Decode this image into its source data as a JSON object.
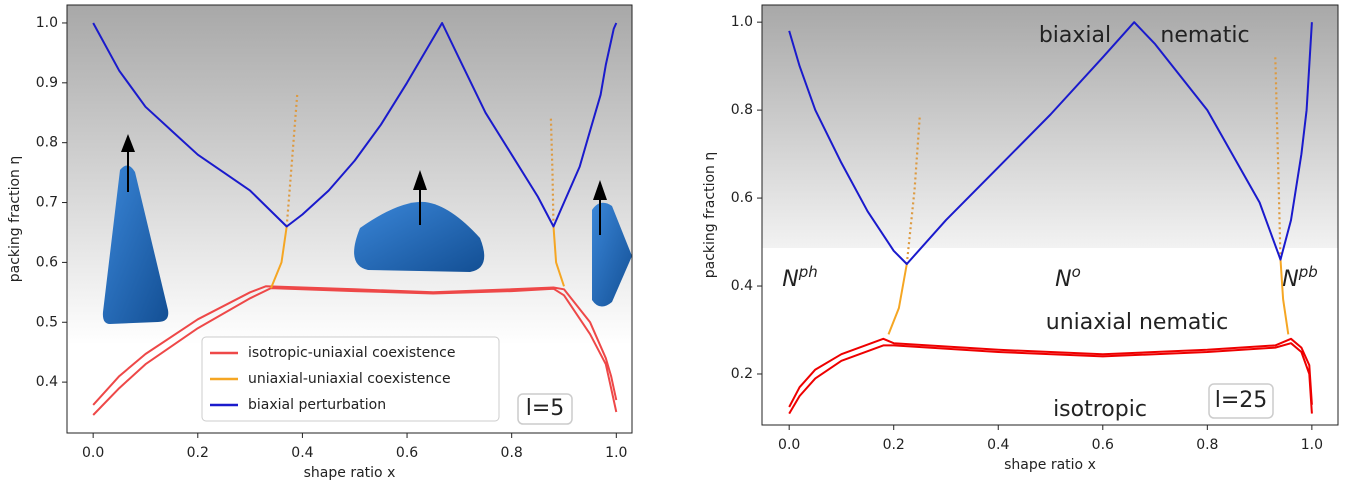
{
  "chart_data": [
    {
      "type": "line",
      "xlabel": "shape ratio x",
      "ylabel": "packing fraction η",
      "xlim": [
        -0.05,
        1.03
      ],
      "ylim": [
        0.315,
        1.03
      ],
      "xticks": [
        {
          "value": 0,
          "label": "0.0"
        },
        0.2,
        0.4,
        0.6,
        0.8,
        {
          "value": 1,
          "label": "1.0"
        }
      ],
      "yticks": [
        0.4,
        0.5,
        0.6,
        0.7,
        0.8,
        0.9,
        {
          "value": 1,
          "label": "1.0"
        }
      ],
      "legend": "lower center",
      "annotations": [
        {
          "text": "l=5"
        }
      ],
      "series": [
        {
          "name": "isotropic-uniaxial coexistence",
          "color": "#ee4848",
          "x": [
            0,
            0.05,
            0.1,
            0.2,
            0.3,
            0.34,
            0.5,
            0.65,
            0.8,
            0.88,
            0.9,
            0.95,
            0.98,
            0.99,
            1.0,
            null,
            0,
            0.05,
            0.1,
            0.2,
            0.3,
            0.33,
            0.5,
            0.65,
            0.8,
            0.88,
            0.9,
            0.95,
            0.98,
            0.99,
            1.0
          ],
          "values": [
            0.345,
            0.39,
            0.43,
            0.49,
            0.54,
            0.557,
            0.552,
            0.548,
            0.552,
            0.556,
            0.545,
            0.48,
            0.43,
            0.39,
            0.35,
            null,
            0.362,
            0.41,
            0.447,
            0.505,
            0.55,
            0.56,
            0.555,
            0.55,
            0.555,
            0.558,
            0.555,
            0.5,
            0.44,
            0.41,
            0.37
          ]
        },
        {
          "name": "uniaxial-uniaxial coexistence",
          "color": "#f5a623",
          "x": [
            0.34,
            0.36,
            0.37,
            null,
            0.88,
            0.885,
            0.9
          ],
          "values": [
            0.557,
            0.6,
            0.66,
            null,
            0.66,
            0.6,
            0.56
          ]
        },
        {
          "color": "#dd9a40",
          "style": "dotted",
          "x": [
            0.37,
            0.38,
            0.39,
            null,
            0.875,
            0.878,
            0.88
          ],
          "values": [
            0.66,
            0.77,
            0.88,
            null,
            0.84,
            0.75,
            0.66
          ]
        },
        {
          "name": "biaxial perturbation",
          "color": "#1a1acc",
          "x": [
            0,
            0.05,
            0.1,
            0.15,
            0.2,
            0.25,
            0.3,
            0.37,
            0.4,
            0.45,
            0.5,
            0.55,
            0.6,
            0.667,
            0.7,
            0.75,
            0.8,
            0.85,
            0.88,
            0.9,
            0.93,
            0.95,
            0.97,
            0.98,
            0.99,
            0.995,
            1.0
          ],
          "values": [
            1.0,
            0.92,
            0.86,
            0.82,
            0.78,
            0.75,
            0.72,
            0.66,
            0.68,
            0.72,
            0.77,
            0.83,
            0.9,
            1.0,
            0.94,
            0.85,
            0.78,
            0.71,
            0.66,
            0.7,
            0.76,
            0.82,
            0.88,
            0.93,
            0.97,
            0.99,
            1.0
          ]
        }
      ]
    },
    {
      "type": "line",
      "xlabel": "shape ratio x",
      "ylabel": "packing fraction η",
      "xlim": [
        -0.052,
        1.05
      ],
      "ylim": [
        0.084,
        1.039
      ],
      "xticks": [
        {
          "value": 0,
          "label": "0.0"
        },
        0.2,
        0.4,
        0.6,
        0.8,
        {
          "value": 1,
          "label": "1.0"
        }
      ],
      "yticks": [
        0.2,
        0.4,
        0.6,
        0.8,
        {
          "value": 1,
          "label": "1.0"
        }
      ],
      "annotations": [
        {
          "text": "biaxial"
        },
        {
          "text": "nematic"
        },
        {
          "text": "N",
          "sup": "ph"
        },
        {
          "text": "N",
          "sup": "o"
        },
        {
          "text": "N",
          "sup": "pb"
        },
        {
          "text": "uniaxial nematic"
        },
        {
          "text": "isotropic"
        },
        {
          "text": "l=25"
        }
      ],
      "series": [
        {
          "color": "#ee0000",
          "x": [
            0,
            0.02,
            0.05,
            0.1,
            0.18,
            0.2,
            0.4,
            0.6,
            0.8,
            0.93,
            0.96,
            0.98,
            0.995,
            1.0,
            null,
            0,
            0.02,
            0.05,
            0.1,
            0.18,
            0.2,
            0.4,
            0.6,
            0.8,
            0.93,
            0.96,
            0.98,
            0.995,
            1.0
          ],
          "values": [
            0.11,
            0.15,
            0.19,
            0.23,
            0.265,
            0.265,
            0.25,
            0.24,
            0.25,
            0.26,
            0.27,
            0.25,
            0.2,
            0.11,
            null,
            0.125,
            0.17,
            0.21,
            0.245,
            0.28,
            0.27,
            0.255,
            0.245,
            0.255,
            0.265,
            0.28,
            0.26,
            0.22,
            0.13
          ]
        },
        {
          "color": "#f5a623",
          "x": [
            0.19,
            0.21,
            0.225,
            null,
            0.94,
            0.945,
            0.955
          ],
          "values": [
            0.29,
            0.35,
            0.45,
            null,
            0.46,
            0.37,
            0.29
          ]
        },
        {
          "color": "#dd9a40",
          "style": "dotted",
          "x": [
            0.225,
            0.24,
            0.25,
            null,
            0.93,
            0.935,
            0.94
          ],
          "values": [
            0.45,
            0.62,
            0.79,
            null,
            0.92,
            0.7,
            0.46
          ]
        },
        {
          "color": "#1a1acc",
          "x": [
            0,
            0.02,
            0.05,
            0.1,
            0.15,
            0.2,
            0.225,
            0.3,
            0.4,
            0.5,
            0.6,
            0.66,
            0.7,
            0.8,
            0.9,
            0.94,
            0.96,
            0.98,
            0.99,
            1.0
          ],
          "values": [
            0.98,
            0.9,
            0.8,
            0.68,
            0.57,
            0.48,
            0.45,
            0.55,
            0.67,
            0.79,
            0.92,
            1.0,
            0.95,
            0.8,
            0.59,
            0.46,
            0.55,
            0.7,
            0.8,
            1.0
          ]
        }
      ]
    }
  ]
}
